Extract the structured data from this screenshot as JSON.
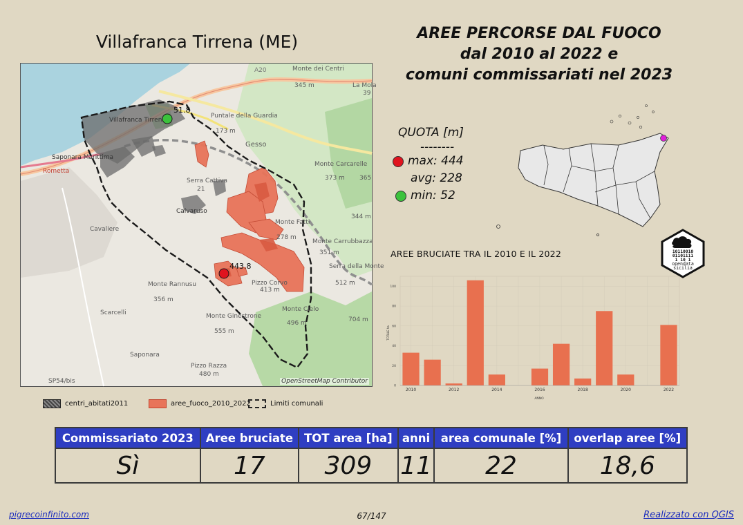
{
  "map": {
    "title": "Villafranca Tirrena (ME)",
    "attribution": "OpenStreetMap Contributor",
    "labels": [
      "A20",
      "Monte dei Centri",
      "345 m",
      "La Mola",
      "39",
      "Villafranca Tirrena",
      "Puntale della Guardia",
      "173 m",
      "Gesso",
      "Saponara Marittima",
      "Rometta",
      "Monte Carcarelle",
      "373 m",
      "Serra Cattiva",
      "21",
      "Calvaruso",
      "Monte Fatti",
      "278 m",
      "Monte Carrubbazza",
      "351 m",
      "344 m",
      "Cavaliere",
      "Serra della Monte",
      "512 m",
      "Pizzo Corvo",
      "413 m",
      "Monte Rannusu",
      "356 m",
      "Scarcelli",
      "Monte Cielo",
      "496 m",
      "Monte Ginestrone",
      "555 m",
      "Pizzo Razza",
      "480 m",
      "Saponara",
      "SP54/bis",
      "704 m",
      "365"
    ],
    "points": [
      {
        "name": "max",
        "value": "443.8"
      },
      {
        "name": "min",
        "value": "51.8"
      }
    ]
  },
  "legend": {
    "items": [
      "centri_abitati2011",
      "aree_fuoco_2010_2022",
      "Limiti comunali"
    ]
  },
  "title": {
    "line1": "AREE PERCORSE DAL FUOCO",
    "line2": "dal 2010 al 2022 e",
    "line3": "comuni commissariati nel 2023"
  },
  "quota": {
    "header": "QUOTA [m]",
    "separator": "--------",
    "max_label": "max: 444",
    "avg_label": "avg: 228",
    "min_label": "min: 52"
  },
  "colors": {
    "fire": "#e8745a",
    "max_dot": "#e0141e",
    "min_dot": "#3cc23c",
    "table_header": "#2f3ec2",
    "bar": "#e8704f",
    "sicily_marker": "#e020d8",
    "link": "#1a2bbd"
  },
  "chart_data": {
    "type": "bar",
    "title": "AREE BRUCIATE TRA IL 2010 E IL 2022",
    "xlabel": "ANNO",
    "ylabel": "TOTALE ha",
    "x": [
      2010,
      2011,
      2012,
      2013,
      2014,
      2015,
      2016,
      2017,
      2018,
      2019,
      2020,
      2021,
      2022
    ],
    "values": [
      33,
      26,
      2,
      106,
      11,
      0,
      17,
      42,
      7,
      75,
      11,
      0,
      61
    ],
    "xticks": [
      2010,
      2012,
      2014,
      2016,
      2018,
      2020,
      2022
    ],
    "yticks": [
      0,
      20,
      40,
      60,
      80,
      100
    ],
    "ylim": [
      0,
      110
    ],
    "grid": true
  },
  "logo": {
    "lines": [
      "10110010",
      "01101111",
      "1  10 1",
      "opendata",
      "sicilia"
    ]
  },
  "table": {
    "headers": [
      "Commissariato 2023",
      "Aree bruciate",
      "TOT area [ha]",
      "anni",
      "area comunale [%]",
      "overlap aree [%]"
    ],
    "values": [
      "Sì",
      "17",
      "309",
      "11",
      "22",
      "18,6"
    ]
  },
  "footer": {
    "left": "pigrecoinfinito.com",
    "page": "67/147",
    "right": "Realizzato con QGIS"
  }
}
